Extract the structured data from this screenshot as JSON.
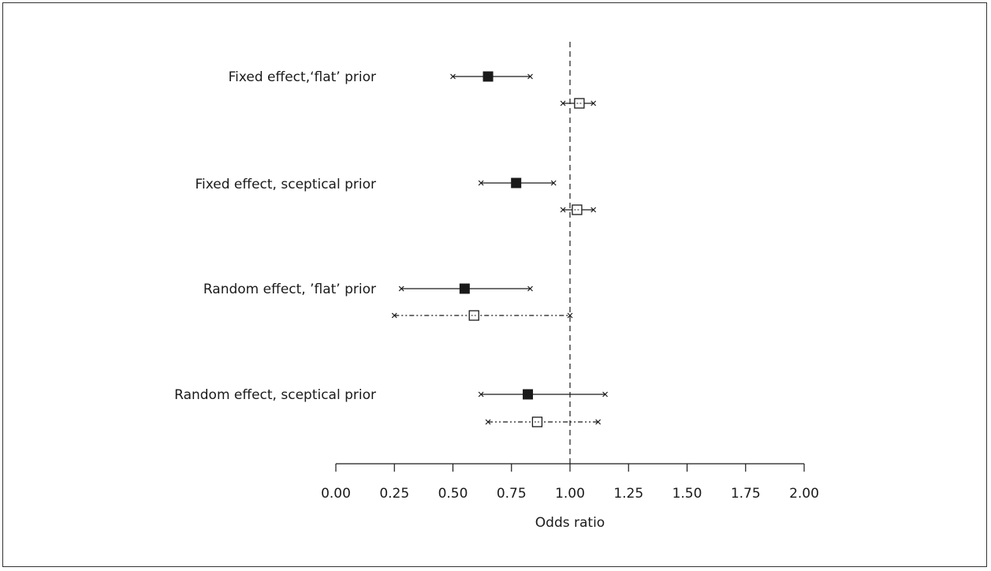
{
  "chart_data": {
    "type": "forest",
    "xlabel": "Odds ratio",
    "xlim": [
      0,
      2
    ],
    "xticks": [
      0,
      0.25,
      0.5,
      0.75,
      1,
      1.25,
      1.5,
      1.75,
      2
    ],
    "xtick_labels": [
      "0.00",
      "0.25",
      "0.50",
      "0.75",
      "1.00",
      "1.25",
      "1.50",
      "1.75",
      "2.00"
    ],
    "reference_line": 1.0,
    "groups": [
      {
        "label": "Fixed effect,‘flat’ prior",
        "estimates": [
          {
            "marker": "filled-square",
            "line": "solid",
            "point": 0.65,
            "lower": 0.5,
            "upper": 0.83
          },
          {
            "marker": "open-square",
            "line": "solid",
            "point": 1.04,
            "lower": 0.97,
            "upper": 1.1
          }
        ]
      },
      {
        "label": "Fixed effect, sceptical prior",
        "estimates": [
          {
            "marker": "filled-square",
            "line": "solid",
            "point": 0.77,
            "lower": 0.62,
            "upper": 0.93
          },
          {
            "marker": "open-square",
            "line": "solid",
            "point": 1.03,
            "lower": 0.97,
            "upper": 1.1
          }
        ]
      },
      {
        "label": "Random effect, ’flat’ prior",
        "estimates": [
          {
            "marker": "filled-square",
            "line": "solid",
            "point": 0.55,
            "lower": 0.28,
            "upper": 0.83
          },
          {
            "marker": "open-square",
            "line": "dash-dot",
            "point": 0.59,
            "lower": 0.25,
            "upper": 1.0
          }
        ]
      },
      {
        "label": "Random effect, sceptical prior",
        "estimates": [
          {
            "marker": "filled-square",
            "line": "solid",
            "point": 0.82,
            "lower": 0.62,
            "upper": 1.15
          },
          {
            "marker": "open-square",
            "line": "dash-dot",
            "point": 0.86,
            "lower": 0.65,
            "upper": 1.12
          }
        ]
      }
    ]
  }
}
